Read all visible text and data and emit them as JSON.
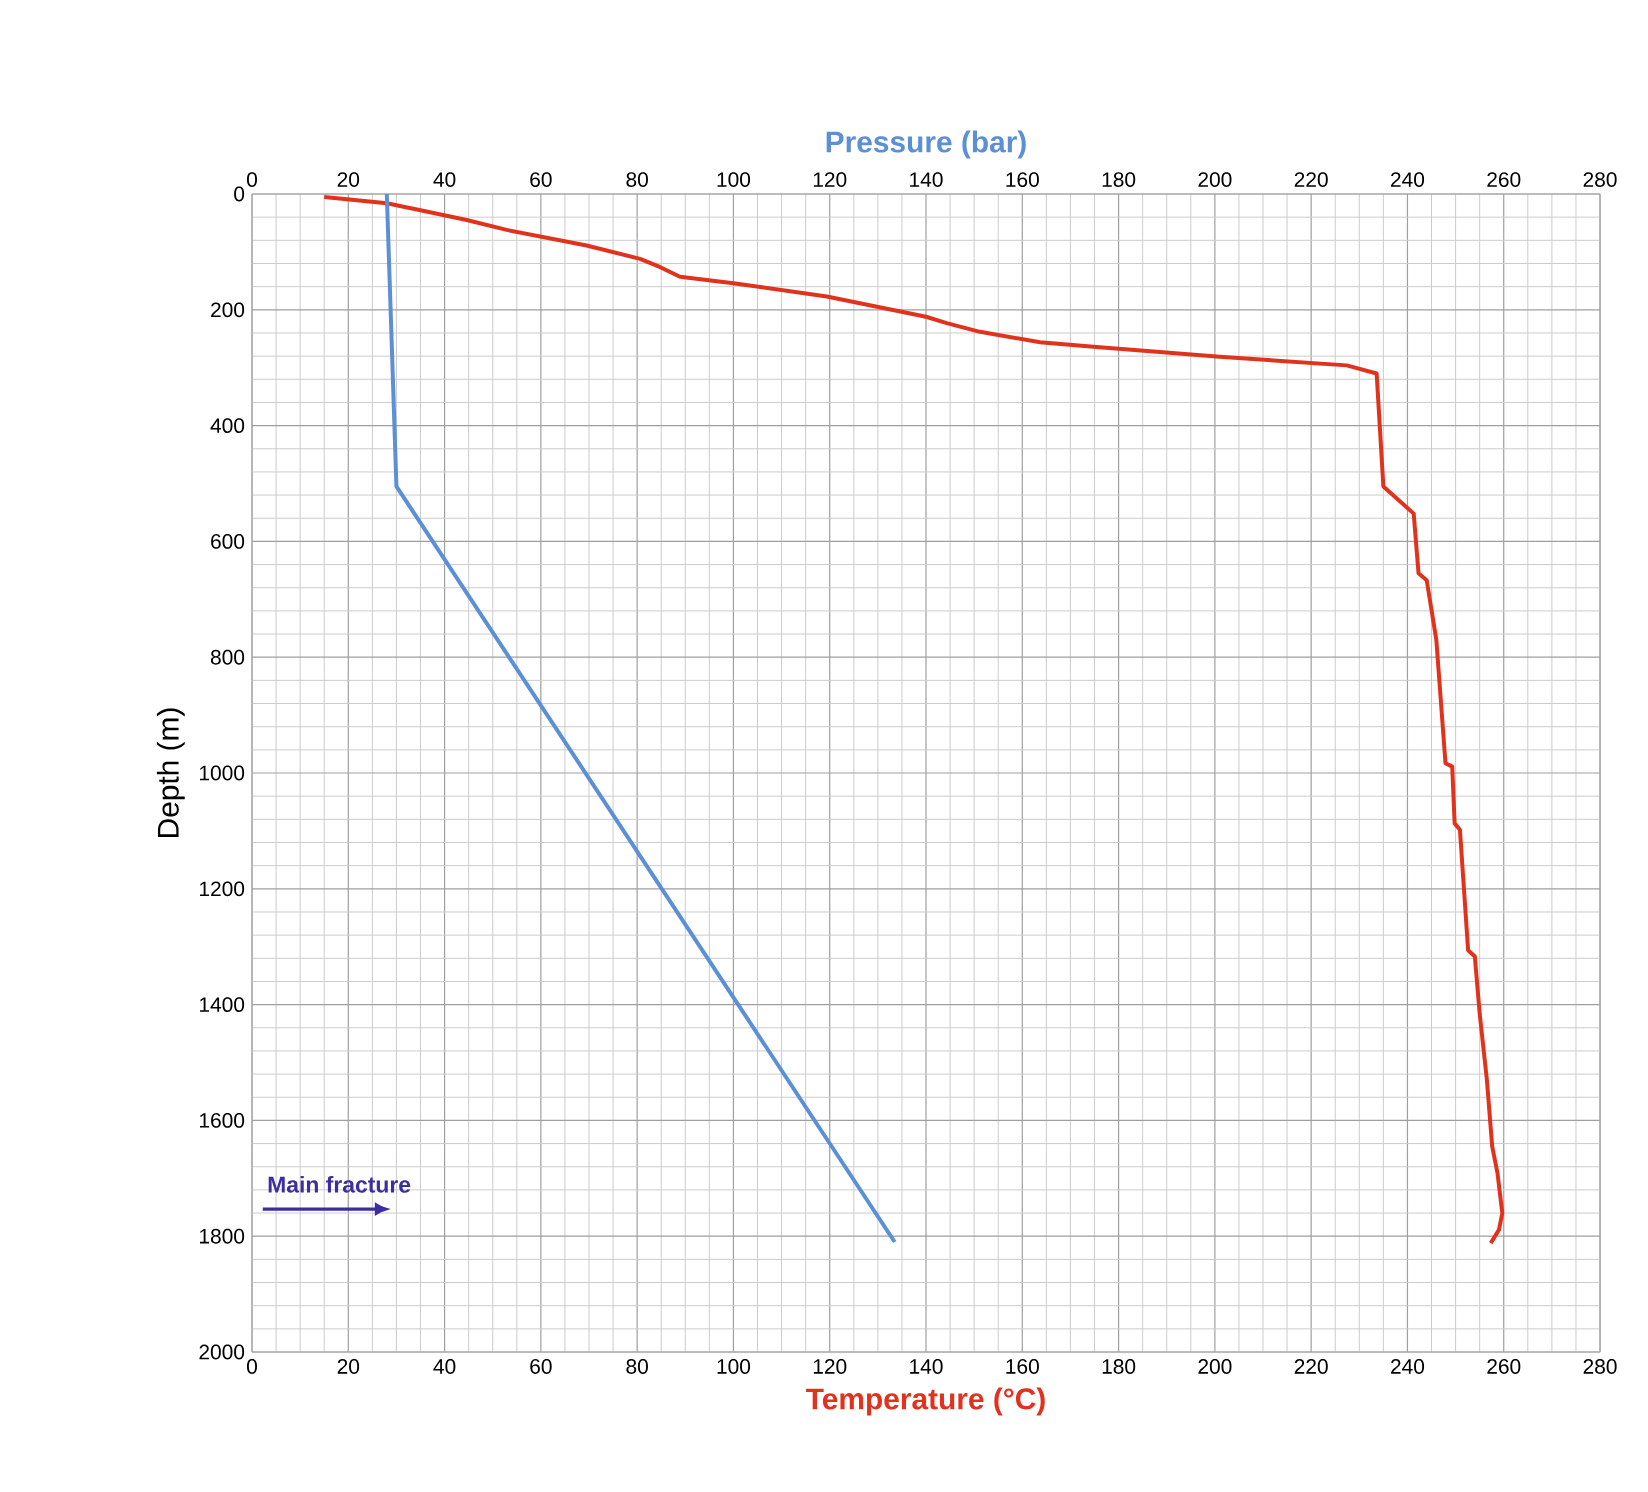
{
  "chart_data": {
    "type": "line",
    "xlabel": "Temperature (°C)",
    "x2label": "Pressure (bar)",
    "ylabel": "Depth (m)",
    "xlim": [
      0,
      280
    ],
    "xticks": [
      0,
      20,
      40,
      60,
      80,
      100,
      120,
      140,
      160,
      180,
      200,
      220,
      240,
      260,
      280
    ],
    "x2lim": [
      0,
      280
    ],
    "x2ticks": [
      0,
      20,
      40,
      60,
      80,
      100,
      120,
      140,
      160,
      180,
      200,
      220,
      240,
      260,
      280
    ],
    "ylim": [
      2000,
      0
    ],
    "yticks": [
      0,
      200,
      400,
      600,
      800,
      1000,
      1200,
      1400,
      1600,
      1800,
      2000
    ],
    "grid": true,
    "series": [
      {
        "color": "#e0321c",
        "x": [
          15,
          28,
          35,
          44.6,
          52.9,
          69.5,
          80.6,
          84.7,
          88.9,
          100,
          119.4,
          140,
          144.3,
          151.2,
          163.7,
          174.8,
          201,
          227.4,
          233.6,
          235,
          241.3,
          242.3,
          244,
          246,
          247.9,
          249.3,
          249.8,
          250.9,
          252.6,
          254,
          255,
          256.5,
          257.6,
          258.7,
          259.7,
          259,
          257.3
        ],
        "values": [
          5,
          16,
          28,
          45,
          62,
          89,
          112,
          126,
          143,
          154,
          177,
          212,
          223,
          238,
          256,
          264,
          281,
          296,
          310,
          505,
          552,
          655,
          667,
          770,
          983,
          989,
          1087,
          1098,
          1306,
          1317,
          1415,
          1530,
          1645,
          1691,
          1760,
          1789,
          1812
        ]
      },
      {
        "color": "#5b8fd6",
        "axis": "x2",
        "x": [
          28,
          30,
          133.5
        ],
        "values": [
          0,
          505,
          1810
        ]
      }
    ],
    "annotations": [
      "Main fracture"
    ]
  }
}
